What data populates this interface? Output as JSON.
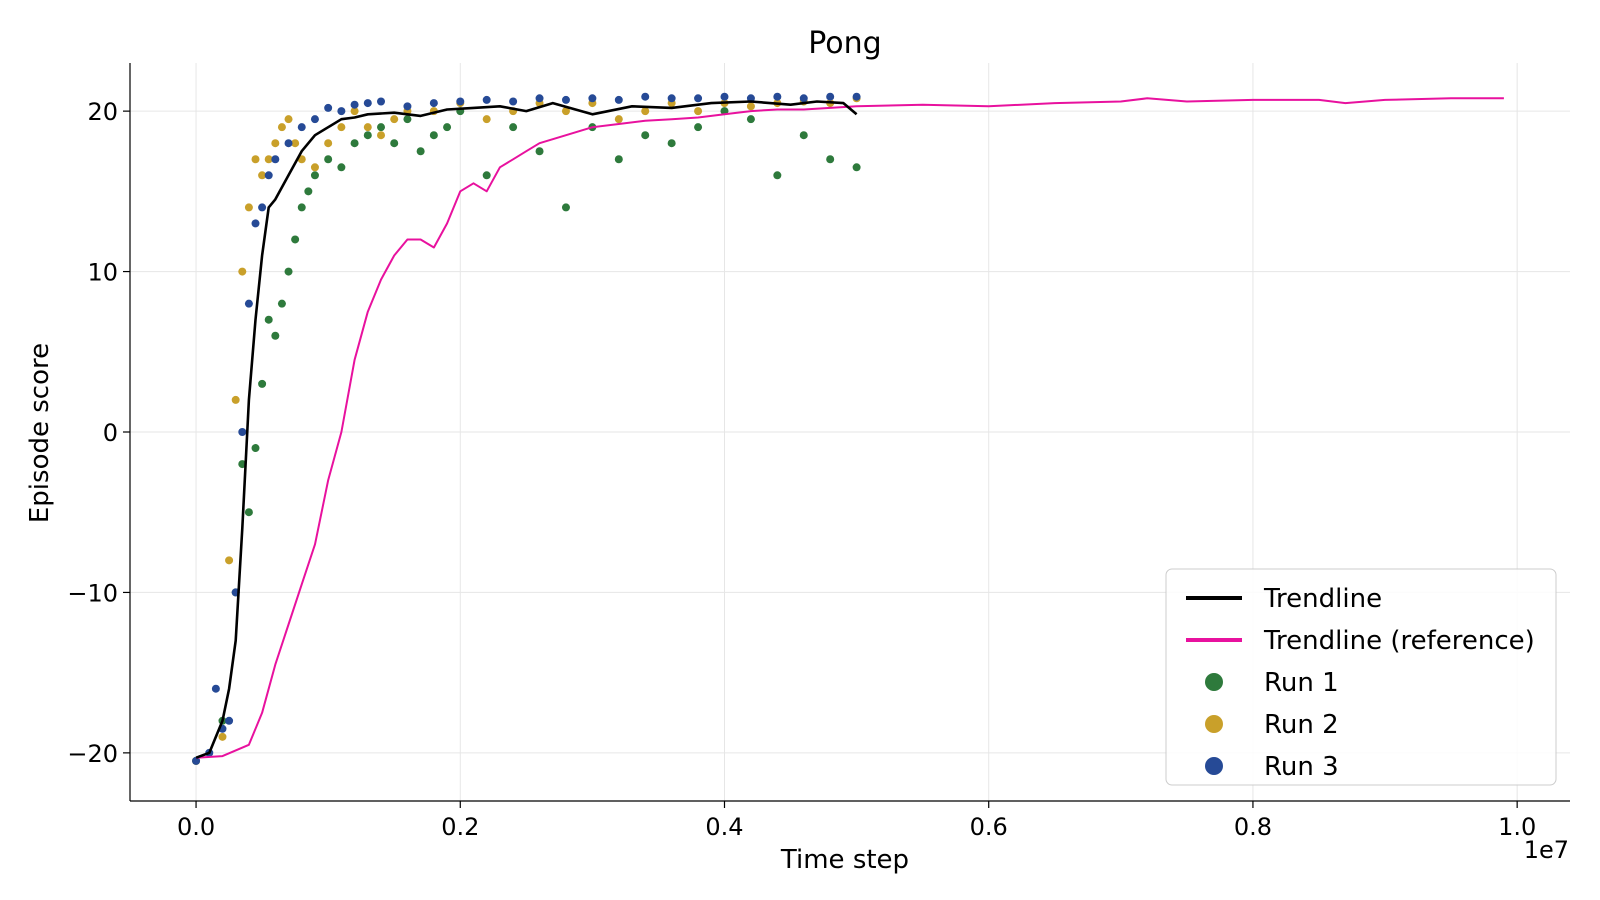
{
  "chart_data": {
    "type": "scatter",
    "title": "Pong",
    "xlabel": "Time step",
    "ylabel": "Episode score",
    "x_offset_label": "1e7",
    "xlim": [
      -0.05,
      1.04
    ],
    "ylim": [
      -23,
      23
    ],
    "x_ticks": [
      0.0,
      0.2,
      0.4,
      0.6,
      0.8,
      1.0
    ],
    "x_tick_labels": [
      "0.0",
      "0.2",
      "0.4",
      "0.6",
      "0.8",
      "1.0"
    ],
    "y_ticks": [
      -20,
      -10,
      0,
      10,
      20
    ],
    "y_tick_labels": [
      "−20",
      "−10",
      "0",
      "10",
      "20"
    ],
    "grid": true,
    "legend_position": "lower-right",
    "colors": {
      "trendline": "#000000",
      "reference": "#e8119e",
      "run1": "#2e7a3c",
      "run2": "#c9a02a",
      "run3": "#264a96"
    },
    "lines": [
      {
        "name": "Trendline",
        "color": "#000000",
        "x": [
          0.0,
          0.01,
          0.015,
          0.02,
          0.025,
          0.03,
          0.035,
          0.04,
          0.045,
          0.05,
          0.055,
          0.06,
          0.07,
          0.08,
          0.09,
          0.1,
          0.11,
          0.12,
          0.13,
          0.15,
          0.17,
          0.19,
          0.21,
          0.23,
          0.25,
          0.27,
          0.3,
          0.33,
          0.36,
          0.39,
          0.42,
          0.45,
          0.47,
          0.49,
          0.5
        ],
        "y": [
          -20.3,
          -20.0,
          -19.0,
          -18.0,
          -16.0,
          -13.0,
          -6.0,
          2.0,
          7.0,
          11.0,
          14.0,
          14.5,
          16.0,
          17.5,
          18.5,
          19.0,
          19.5,
          19.6,
          19.8,
          19.9,
          19.7,
          20.1,
          20.2,
          20.3,
          20.0,
          20.5,
          19.8,
          20.3,
          20.2,
          20.5,
          20.6,
          20.4,
          20.6,
          20.5,
          19.8
        ]
      },
      {
        "name": "Trendline (reference)",
        "color": "#e8119e",
        "x": [
          0.0,
          0.02,
          0.04,
          0.05,
          0.06,
          0.07,
          0.08,
          0.09,
          0.1,
          0.11,
          0.12,
          0.13,
          0.14,
          0.15,
          0.16,
          0.17,
          0.18,
          0.19,
          0.2,
          0.21,
          0.22,
          0.23,
          0.24,
          0.25,
          0.26,
          0.28,
          0.3,
          0.32,
          0.34,
          0.36,
          0.38,
          0.4,
          0.42,
          0.44,
          0.46,
          0.48,
          0.5,
          0.55,
          0.6,
          0.65,
          0.7,
          0.72,
          0.75,
          0.8,
          0.85,
          0.87,
          0.9,
          0.95,
          0.99
        ],
        "y": [
          -20.3,
          -20.2,
          -19.5,
          -17.5,
          -14.5,
          -12.0,
          -9.5,
          -7.0,
          -3.0,
          0.0,
          4.5,
          7.5,
          9.5,
          11.0,
          12.0,
          12.0,
          11.5,
          13.0,
          15.0,
          15.5,
          15.0,
          16.5,
          17.0,
          17.5,
          18.0,
          18.5,
          19.0,
          19.2,
          19.4,
          19.5,
          19.6,
          19.8,
          20.0,
          20.1,
          20.1,
          20.2,
          20.3,
          20.4,
          20.3,
          20.5,
          20.6,
          20.8,
          20.6,
          20.7,
          20.7,
          20.5,
          20.7,
          20.8,
          20.8
        ]
      }
    ],
    "series": [
      {
        "name": "Run 1",
        "color": "#2e7a3c",
        "x": [
          0.0,
          0.02,
          0.03,
          0.035,
          0.04,
          0.045,
          0.05,
          0.055,
          0.06,
          0.065,
          0.07,
          0.075,
          0.08,
          0.085,
          0.09,
          0.1,
          0.11,
          0.12,
          0.13,
          0.14,
          0.15,
          0.16,
          0.17,
          0.18,
          0.19,
          0.2,
          0.22,
          0.24,
          0.26,
          0.28,
          0.3,
          0.32,
          0.34,
          0.36,
          0.38,
          0.4,
          0.42,
          0.44,
          0.46,
          0.48,
          0.5
        ],
        "y": [
          -20.5,
          -18.0,
          -10.0,
          -2.0,
          -5.0,
          -1.0,
          3.0,
          7.0,
          6.0,
          8.0,
          10.0,
          12.0,
          14.0,
          15.0,
          16.0,
          17.0,
          16.5,
          18.0,
          18.5,
          19.0,
          18.0,
          19.5,
          17.5,
          18.5,
          19.0,
          20.0,
          16.0,
          19.0,
          17.5,
          14.0,
          19.0,
          17.0,
          18.5,
          18.0,
          19.0,
          20.0,
          19.5,
          16.0,
          18.5,
          17.0,
          16.5
        ]
      },
      {
        "name": "Run 2",
        "color": "#c9a02a",
        "x": [
          0.0,
          0.02,
          0.025,
          0.03,
          0.035,
          0.04,
          0.045,
          0.05,
          0.055,
          0.06,
          0.065,
          0.07,
          0.075,
          0.08,
          0.09,
          0.1,
          0.11,
          0.12,
          0.13,
          0.14,
          0.15,
          0.16,
          0.18,
          0.2,
          0.22,
          0.24,
          0.26,
          0.28,
          0.3,
          0.32,
          0.34,
          0.36,
          0.38,
          0.4,
          0.42,
          0.44,
          0.46,
          0.48,
          0.5
        ],
        "y": [
          -20.5,
          -19.0,
          -8.0,
          2.0,
          10.0,
          14.0,
          17.0,
          16.0,
          17.0,
          18.0,
          19.0,
          19.5,
          18.0,
          17.0,
          16.5,
          18.0,
          19.0,
          20.0,
          19.0,
          18.5,
          19.5,
          20.0,
          20.0,
          20.5,
          19.5,
          20.0,
          20.5,
          20.0,
          20.5,
          19.5,
          20.0,
          20.5,
          20.0,
          20.5,
          20.3,
          20.5,
          20.6,
          20.5,
          20.8
        ]
      },
      {
        "name": "Run 3",
        "color": "#264a96",
        "x": [
          0.0,
          0.01,
          0.015,
          0.02,
          0.025,
          0.03,
          0.035,
          0.04,
          0.045,
          0.05,
          0.055,
          0.06,
          0.07,
          0.08,
          0.09,
          0.1,
          0.11,
          0.12,
          0.13,
          0.14,
          0.16,
          0.18,
          0.2,
          0.22,
          0.24,
          0.26,
          0.28,
          0.3,
          0.32,
          0.34,
          0.36,
          0.38,
          0.4,
          0.42,
          0.44,
          0.46,
          0.48,
          0.5
        ],
        "y": [
          -20.5,
          -20.0,
          -16.0,
          -18.5,
          -18.0,
          -10.0,
          0.0,
          8.0,
          13.0,
          14.0,
          16.0,
          17.0,
          18.0,
          19.0,
          19.5,
          20.2,
          20.0,
          20.4,
          20.5,
          20.6,
          20.3,
          20.5,
          20.6,
          20.7,
          20.6,
          20.8,
          20.7,
          20.8,
          20.7,
          20.9,
          20.8,
          20.8,
          20.9,
          20.8,
          20.9,
          20.8,
          20.9,
          20.9
        ]
      }
    ],
    "legend": [
      {
        "label": "Trendline",
        "kind": "line",
        "color": "#000000"
      },
      {
        "label": "Trendline (reference)",
        "kind": "line",
        "color": "#e8119e"
      },
      {
        "label": "Run 1",
        "kind": "marker",
        "color": "#2e7a3c"
      },
      {
        "label": "Run 2",
        "kind": "marker",
        "color": "#c9a02a"
      },
      {
        "label": "Run 3",
        "kind": "marker",
        "color": "#264a96"
      }
    ]
  }
}
